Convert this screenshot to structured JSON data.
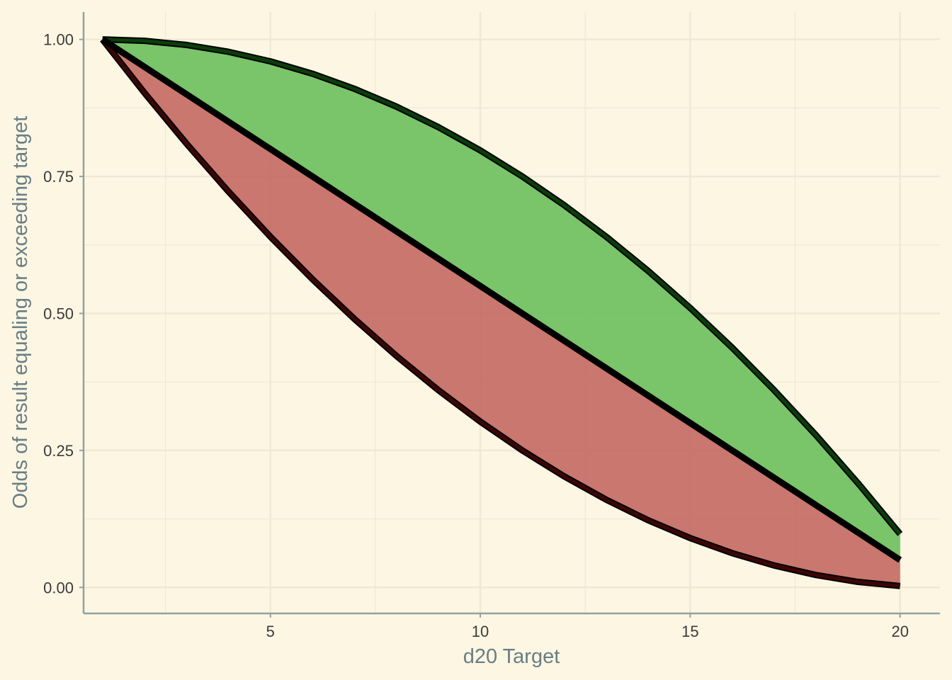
{
  "chart_data": {
    "type": "area",
    "title": "",
    "xlabel": "d20 Target",
    "ylabel": "Odds of result equaling or exceeding target",
    "xlim": [
      0.55,
      20.95
    ],
    "ylim": [
      -0.0475,
      1.05
    ],
    "x_ticks": [
      5,
      10,
      15,
      20
    ],
    "y_ticks": [
      0.0,
      0.25,
      0.5,
      0.75,
      1.0
    ],
    "y_tick_labels": [
      "0.00",
      "0.25",
      "0.50",
      "0.75",
      "1.00"
    ],
    "x": [
      1,
      2,
      3,
      4,
      5,
      6,
      7,
      8,
      9,
      10,
      11,
      12,
      13,
      14,
      15,
      16,
      17,
      18,
      19,
      20
    ],
    "grid": true,
    "legend": "none",
    "series": [
      {
        "values": [
          1.0,
          0.9975,
          0.99,
          0.9775,
          0.96,
          0.9375,
          0.91,
          0.8775,
          0.84,
          0.7975,
          0.75,
          0.6975,
          0.64,
          0.5775,
          0.51,
          0.4375,
          0.36,
          0.2775,
          0.19,
          0.0975
        ],
        "line_color": "#0b3d0b",
        "fill_color": "#6cbf5c"
      },
      {
        "values": [
          1.0,
          0.95,
          0.9,
          0.85,
          0.8,
          0.75,
          0.7,
          0.65,
          0.6,
          0.55,
          0.5,
          0.45,
          0.4,
          0.35,
          0.3,
          0.25,
          0.2,
          0.15,
          0.1,
          0.05
        ],
        "line_color": "#000000",
        "fill_color": "none"
      },
      {
        "values": [
          1.0,
          0.9025,
          0.81,
          0.7225,
          0.64,
          0.5625,
          0.49,
          0.4225,
          0.36,
          0.3025,
          0.25,
          0.2025,
          0.16,
          0.1225,
          0.09,
          0.0625,
          0.04,
          0.0225,
          0.01,
          0.0025
        ],
        "line_color": "#3d0505",
        "fill_color": "#c0605a"
      }
    ],
    "colors": {
      "background": "#fdf6e3",
      "grid": "#eee8d5",
      "axis": "#93a1a1"
    }
  }
}
